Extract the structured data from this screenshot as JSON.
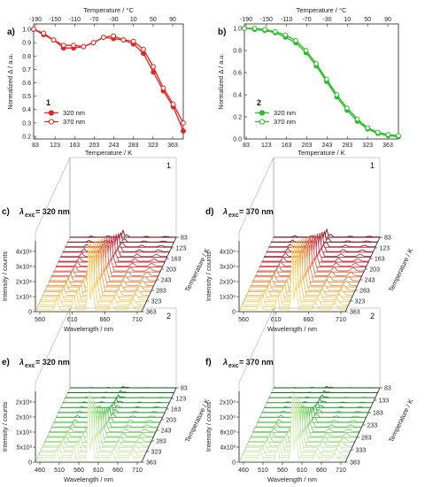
{
  "top_charts": [
    {
      "panel": "a)",
      "compound": "1",
      "color": "#e8231c",
      "type": "line",
      "top_axis_label": "Temperature / °C",
      "xlabel": "Temperature / K",
      "ylabel": "Normalized Δ / a.u.",
      "xlim": [
        83,
        383
      ],
      "ylim": [
        0.18,
        1.04
      ],
      "x_ticks": [
        "83",
        "123",
        "163",
        "203",
        "243",
        "283",
        "323",
        "363"
      ],
      "x_ticks_top": [
        "-190",
        "-150",
        "-110",
        "-70",
        "-30",
        "10",
        "50",
        "90"
      ],
      "y_ticks": [
        "0.2",
        "0.3",
        "0.4",
        "0.5",
        "0.6",
        "0.7",
        "0.8",
        "0.9",
        "1.0"
      ],
      "x": [
        83,
        103,
        123,
        143,
        163,
        183,
        203,
        223,
        243,
        263,
        283,
        303,
        323,
        343,
        363,
        383
      ],
      "series": [
        {
          "name": "320 nm",
          "marker": "filled",
          "values": [
            1.0,
            0.96,
            0.92,
            0.86,
            0.86,
            0.87,
            0.9,
            0.94,
            0.93,
            0.92,
            0.89,
            0.82,
            0.68,
            0.54,
            0.42,
            0.24
          ]
        },
        {
          "name": "370 nm",
          "marker": "open",
          "values": [
            1.0,
            0.97,
            0.92,
            0.88,
            0.88,
            0.87,
            0.9,
            0.94,
            0.95,
            0.92,
            0.91,
            0.85,
            0.72,
            0.56,
            0.44,
            0.3
          ]
        }
      ]
    },
    {
      "panel": "b)",
      "compound": "2",
      "color": "#22c022",
      "type": "line",
      "top_axis_label": "Temperature / °C",
      "xlabel": "Temperature / K",
      "ylabel": "Normalized Δ / a.u.",
      "xlim": [
        83,
        383
      ],
      "ylim": [
        0.0,
        1.04
      ],
      "x_ticks": [
        "83",
        "123",
        "163",
        "203",
        "243",
        "283",
        "323",
        "363"
      ],
      "x_ticks_top": [
        "-190",
        "-150",
        "-110",
        "-70",
        "-30",
        "10",
        "50",
        "90"
      ],
      "y_ticks": [
        "0.0",
        "0.2",
        "0.4",
        "0.6",
        "0.8",
        "1.0"
      ],
      "x": [
        83,
        103,
        123,
        143,
        163,
        183,
        203,
        223,
        243,
        263,
        283,
        303,
        323,
        343,
        363,
        383
      ],
      "series": [
        {
          "name": "320 nm",
          "marker": "filled",
          "values": [
            1.0,
            0.99,
            0.98,
            0.96,
            0.92,
            0.87,
            0.78,
            0.66,
            0.52,
            0.38,
            0.26,
            0.16,
            0.09,
            0.05,
            0.03,
            0.02
          ]
        },
        {
          "name": "370 nm",
          "marker": "open",
          "values": [
            1.0,
            1.0,
            0.99,
            0.97,
            0.94,
            0.89,
            0.8,
            0.68,
            0.54,
            0.4,
            0.28,
            0.18,
            0.1,
            0.06,
            0.04,
            0.03
          ]
        }
      ]
    }
  ],
  "bottom_charts": [
    {
      "panel": "c)",
      "header_lambda": "λ",
      "header_sub": "exc",
      "header_value": " = 320 nm",
      "compound": "1",
      "palette": "red",
      "ylabel": "Intensity / counts",
      "xlabel": "Wavelength / nm",
      "depth_label": "Temperature / K",
      "x_ticks": [
        "560",
        "610",
        "660",
        "710"
      ],
      "y_ticks": [
        "0",
        "1x10⁴",
        "2x10⁴",
        "3x10⁴",
        "4x10⁴"
      ],
      "depth_ticks": [
        "83",
        "123",
        "163",
        "203",
        "243",
        "283",
        "323",
        "363"
      ],
      "peak_heights": [
        1.0,
        0.92,
        0.86,
        0.8,
        0.74,
        0.68,
        0.62,
        0.56,
        0.5,
        0.44,
        0.38,
        0.32,
        0.26,
        0.2,
        0.14,
        0.1
      ]
    },
    {
      "panel": "d)",
      "header_lambda": "λ",
      "header_sub": "exc",
      "header_value": " = 370 nm",
      "compound": "1",
      "palette": "red",
      "ylabel": "Intensity / counts",
      "xlabel": "Wavelength / nm",
      "depth_label": "Temperature / K",
      "x_ticks": [
        "560",
        "610",
        "660",
        "710"
      ],
      "y_ticks": [
        "0",
        "1x10⁴",
        "2x10⁴",
        "3x10⁴",
        "4x10⁴"
      ],
      "depth_ticks": [
        "83",
        "123",
        "163",
        "203",
        "243",
        "283",
        "323",
        "363"
      ],
      "peak_heights": [
        1.0,
        0.94,
        0.88,
        0.82,
        0.76,
        0.7,
        0.64,
        0.58,
        0.52,
        0.46,
        0.4,
        0.34,
        0.28,
        0.22,
        0.16,
        0.12
      ]
    },
    {
      "panel": "e)",
      "header_lambda": "λ",
      "header_sub": "exc",
      "header_value": " = 320 nm",
      "compound": "2",
      "palette": "green",
      "ylabel": "Intensity / counts",
      "xlabel": "Wavelength / nm",
      "depth_label": "Temperature / K",
      "x_ticks": [
        "460",
        "510",
        "560",
        "610",
        "660",
        "710"
      ],
      "y_ticks": [
        "0",
        "5x10³",
        "1x10⁴",
        "2x10⁴",
        "2x10⁴"
      ],
      "depth_ticks": [
        "83",
        "123",
        "163",
        "203",
        "243",
        "283",
        "323",
        "363"
      ],
      "peak_heights": [
        1.0,
        0.9,
        0.78,
        0.66,
        0.54,
        0.44,
        0.36,
        0.28,
        0.22,
        0.16,
        0.12,
        0.08,
        0.06,
        0.04,
        0.03,
        0.02
      ]
    },
    {
      "panel": "f)",
      "header_lambda": "λ",
      "header_sub": "exc",
      "header_value": " = 370 nm",
      "compound": "2",
      "palette": "green",
      "ylabel": "Intensity / counts",
      "xlabel": "Wavelength / nm",
      "depth_label": "Temperature / K",
      "x_ticks": [
        "460",
        "510",
        "560",
        "610",
        "660",
        "710"
      ],
      "y_ticks": [
        "0",
        "4x10³",
        "8x10³",
        "1x10⁴",
        "2x10⁴"
      ],
      "depth_ticks": [
        "83",
        "133",
        "183",
        "233",
        "283",
        "333",
        "383"
      ],
      "peak_heights": [
        1.0,
        0.92,
        0.82,
        0.7,
        0.58,
        0.48,
        0.38,
        0.3,
        0.22,
        0.16,
        0.12,
        0.08,
        0.06,
        0.04,
        0.03,
        0.02
      ]
    }
  ]
}
